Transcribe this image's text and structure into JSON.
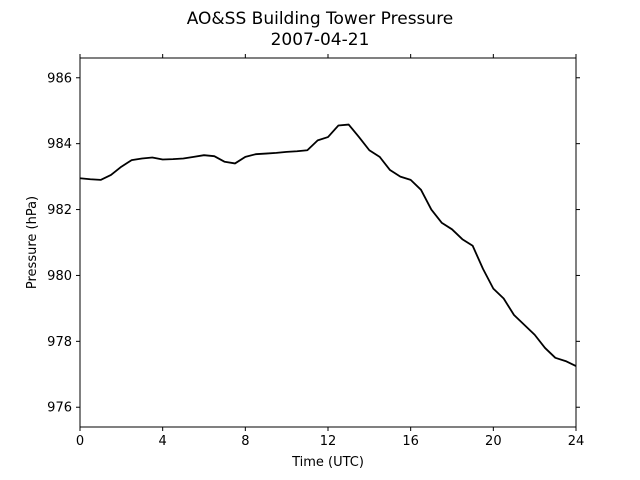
{
  "chart_data": {
    "type": "line",
    "title": "AO&SS Building Tower Pressure",
    "subtitle": "2007-04-21",
    "xlabel": "Time (UTC)",
    "ylabel": "Pressure (hPa)",
    "xlim": [
      0,
      24
    ],
    "ylim": [
      975.4,
      986.6
    ],
    "xticks": [
      0,
      4,
      8,
      12,
      16,
      20,
      24
    ],
    "yticks": [
      976,
      978,
      980,
      982,
      984,
      986
    ],
    "grid": false,
    "line_color": "#000000",
    "series": [
      {
        "x": [
          0,
          0.5,
          1,
          1.5,
          2,
          2.5,
          3,
          3.5,
          4,
          4.5,
          5,
          5.5,
          6,
          6.5,
          7,
          7.5,
          8,
          8.5,
          9,
          9.5,
          10,
          10.5,
          11,
          11.5,
          12,
          12.5,
          13,
          13.5,
          14,
          14.5,
          15,
          15.5,
          16,
          16.5,
          17,
          17.5,
          18,
          18.5,
          19,
          19.5,
          20,
          20.5,
          21,
          21.5,
          22,
          22.5,
          23,
          23.5,
          24
        ],
        "values": [
          982.95,
          982.92,
          982.9,
          983.05,
          983.3,
          983.5,
          983.55,
          983.58,
          983.52,
          983.53,
          983.55,
          983.6,
          983.65,
          983.62,
          983.45,
          983.4,
          983.6,
          983.68,
          983.7,
          983.72,
          983.75,
          983.77,
          983.8,
          984.1,
          984.2,
          984.55,
          984.58,
          984.2,
          983.8,
          983.6,
          983.2,
          983.0,
          982.9,
          982.6,
          982.0,
          981.6,
          981.4,
          981.1,
          980.9,
          980.2,
          979.6,
          979.3,
          978.8,
          978.5,
          978.2,
          977.8,
          977.5,
          977.4,
          977.25
        ]
      }
    ]
  }
}
